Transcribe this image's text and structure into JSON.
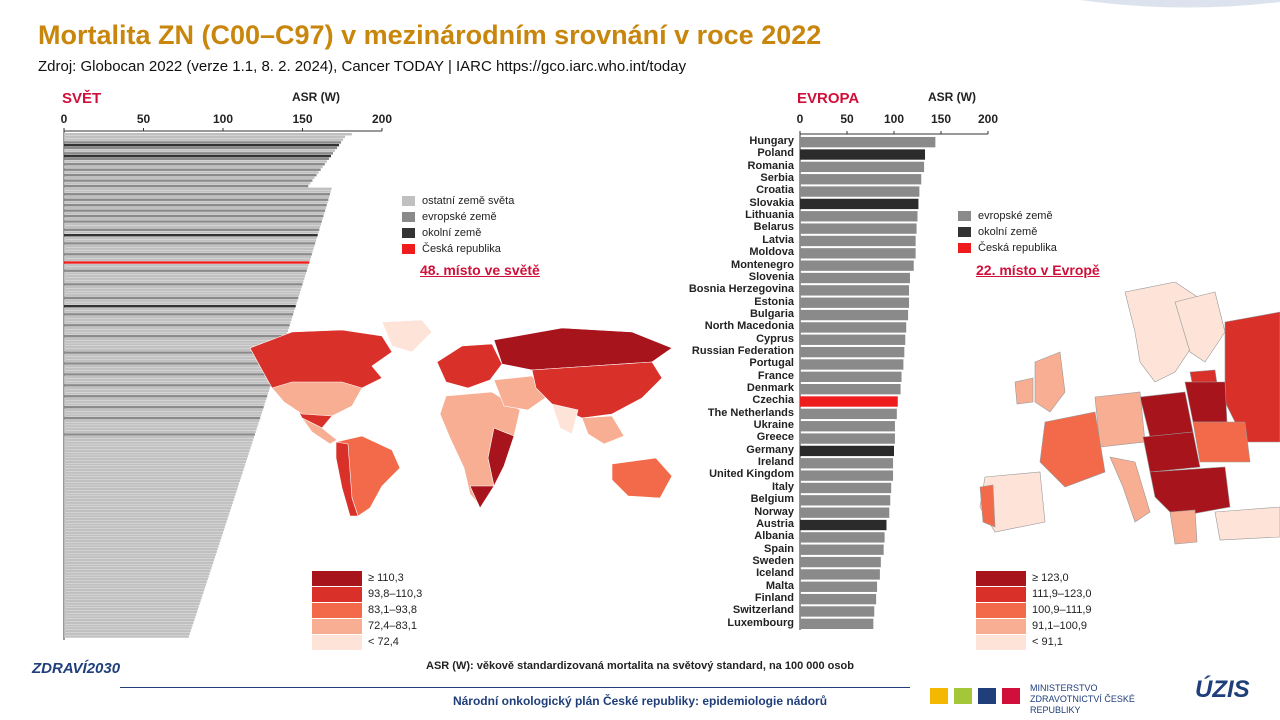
{
  "header": {
    "title": "Mortalita ZN (C00–C97) v mezinárodním srovnání v roce 2022",
    "subtitle": "Zdroj: Globocan 2022 (verze 1.1, 8. 2. 2024), Cancer TODAY | IARC https://gco.iarc.who.int/today"
  },
  "world": {
    "label": "SVĚT",
    "axis_label": "ASR (W)",
    "legend": [
      {
        "label": "ostatní země světa",
        "color": "#c0c0c0"
      },
      {
        "label": "evropské země",
        "color": "#8a8a8a"
      },
      {
        "label": "okolní země",
        "color": "#333333"
      },
      {
        "label": "Česká republika",
        "color": "#ee1c1c"
      }
    ],
    "rank_text": "48. místo ve světě",
    "map_scale": [
      {
        "label": "≥ 110,3",
        "color": "#a8141c"
      },
      {
        "label": "93,8–110,3",
        "color": "#d9302a"
      },
      {
        "label": "83,1–93,8",
        "color": "#f26a4a"
      },
      {
        "label": "72,4–83,1",
        "color": "#f7ae92"
      },
      {
        "label": "< 72,4",
        "color": "#fde3d8"
      }
    ]
  },
  "europe": {
    "label": "EVROPA",
    "axis_label": "ASR (W)",
    "legend": [
      {
        "label": "evropské země",
        "color": "#8a8a8a"
      },
      {
        "label": "okolní země",
        "color": "#333333"
      },
      {
        "label": "Česká republika",
        "color": "#ee1c1c"
      }
    ],
    "rank_text": "22. místo v Evropě",
    "map_scale": [
      {
        "label": "≥ 123,0",
        "color": "#a8141c"
      },
      {
        "label": "111,9–123,0",
        "color": "#d9302a"
      },
      {
        "label": "100,9–111,9",
        "color": "#f26a4a"
      },
      {
        "label": "91,1–100,9",
        "color": "#f7ae92"
      },
      {
        "label": "< 91,1",
        "color": "#fde3d8"
      }
    ]
  },
  "chart_data": [
    {
      "type": "bar",
      "orientation": "horizontal",
      "xlabel": "ASR (W)",
      "xlim": [
        0,
        200
      ],
      "ticks": [
        0,
        50,
        100,
        150,
        200
      ],
      "categories_count": 185,
      "highlight": {
        "czech_rank": 48
      }
    },
    {
      "type": "bar",
      "orientation": "horizontal",
      "xlabel": "ASR (W)",
      "xlim": [
        0,
        200
      ],
      "ticks": [
        0,
        50,
        100,
        150,
        200
      ],
      "categories": [
        "Hungary",
        "Poland",
        "Romania",
        "Serbia",
        "Croatia",
        "Slovakia",
        "Lithuania",
        "Belarus",
        "Latvia",
        "Moldova",
        "Montenegro",
        "Slovenia",
        "Bosnia Herzegovina",
        "Estonia",
        "Bulgaria",
        "North Macedonia",
        "Cyprus",
        "Russian Federation",
        "Portugal",
        "France",
        "Denmark",
        "Czechia",
        "The Netherlands",
        "Ukraine",
        "Greece",
        "Germany",
        "Ireland",
        "United Kingdom",
        "Italy",
        "Belgium",
        "Norway",
        "Austria",
        "Albania",
        "Spain",
        "Sweden",
        "Iceland",
        "Malta",
        "Finland",
        "Switzerland",
        "Luxembourg"
      ],
      "values": [
        144,
        133,
        132,
        129,
        127,
        126,
        125,
        124,
        123,
        123,
        121,
        117,
        116,
        116,
        115,
        113,
        112,
        111,
        110,
        108,
        107,
        104,
        103,
        101,
        101,
        100,
        99,
        99,
        97,
        96,
        95,
        92,
        90,
        89,
        86,
        85,
        82,
        81,
        79,
        78
      ],
      "groups": [
        "eu",
        "near",
        "eu",
        "eu",
        "eu",
        "near",
        "eu",
        "eu",
        "eu",
        "eu",
        "eu",
        "eu",
        "eu",
        "eu",
        "eu",
        "eu",
        "eu",
        "eu",
        "eu",
        "eu",
        "eu",
        "cz",
        "eu",
        "eu",
        "eu",
        "near",
        "eu",
        "eu",
        "eu",
        "eu",
        "eu",
        "near",
        "eu",
        "eu",
        "eu",
        "eu",
        "eu",
        "eu",
        "eu",
        "eu"
      ]
    }
  ],
  "footer": {
    "note": "ASR (W): věkově standardizovaná mortalita na světový standard, na 100 000 osob",
    "plan": "Národní onkologický plán České republiky: epidemiologie nádorů",
    "logo_zdravi": "ZDRAVÍ2030",
    "ministry": "MINISTERSTVO ZDRAVOTNICTVÍ ČESKÉ REPUBLIKY",
    "uzis": "ÚZIS"
  }
}
